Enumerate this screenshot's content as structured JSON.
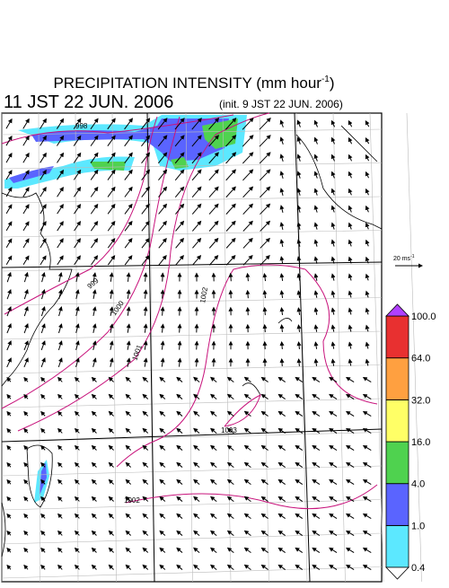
{
  "header": {
    "title": "PRECIPITATION INTENSITY (mm hour",
    "title_sup": "-1",
    "title_end": ")",
    "valid_time": "11 JST 22 JUN. 2006",
    "init_time": "(init. 9 JST 22 JUN. 2006)"
  },
  "vector_scale": {
    "label": "20 ms",
    "sup": "-1"
  },
  "colorbar": {
    "ticks": [
      {
        "value": 0.4,
        "label": "0.4"
      },
      {
        "value": 1,
        "label": "1.0"
      },
      {
        "value": 4,
        "label": "4.0"
      },
      {
        "value": 16,
        "label": "16.0"
      },
      {
        "value": 32,
        "label": "32.0"
      },
      {
        "value": 64,
        "label": "64.0"
      },
      {
        "value": 100,
        "label": "100.0"
      }
    ],
    "colors": [
      "#5ce8ff",
      "#5a64ff",
      "#4fd24f",
      "#ffff66",
      "#ffa040",
      "#e83030",
      "#b040ff"
    ]
  },
  "isobar_labels": [
    998,
    999,
    1000,
    1001,
    1002,
    1003,
    1002
  ]
}
